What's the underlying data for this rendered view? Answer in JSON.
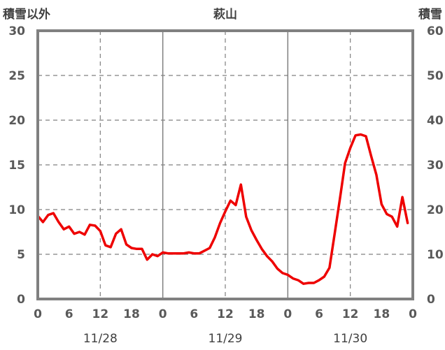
{
  "chart_data": {
    "type": "line",
    "title": "萩山",
    "y_left_label": "積雪以外",
    "y_right_label": "積雪",
    "y_left_range": [
      0,
      30
    ],
    "y_left_ticks": [
      "0",
      "5",
      "10",
      "15",
      "20",
      "25",
      "30"
    ],
    "y_right_range": [
      0,
      60
    ],
    "y_right_ticks": [
      "0",
      "10",
      "20",
      "30",
      "40",
      "50",
      "60"
    ],
    "x_range_hours": [
      0,
      72
    ],
    "x_tick_labels": [
      "0",
      "6",
      "12",
      "18",
      "0",
      "6",
      "12",
      "18",
      "0",
      "6",
      "12",
      "18",
      "0"
    ],
    "date_labels": [
      "11/28",
      "11/29",
      "11/30"
    ],
    "grid": true,
    "colors": {
      "temperature": "#ee0000",
      "snow_depth": "#7030a0",
      "frame": "#808080",
      "grid": "#808080"
    },
    "series": [
      {
        "axis": "left",
        "color": "#ee0000",
        "x": [
          0,
          1,
          2,
          3,
          4,
          5,
          6,
          7,
          8,
          9,
          10,
          11,
          12,
          13,
          14,
          15,
          16,
          17,
          18,
          19,
          20,
          21,
          22,
          23,
          24,
          25,
          26,
          27,
          28,
          29,
          30,
          31,
          32,
          33,
          34,
          35,
          36,
          37,
          38,
          39,
          40,
          41,
          42,
          43,
          44,
          45,
          46,
          47,
          48,
          49,
          50,
          51,
          52,
          53,
          54,
          55,
          56,
          57,
          58,
          59,
          60,
          61,
          62,
          63,
          64,
          65,
          66,
          67,
          68,
          69,
          70,
          71
        ],
        "values": [
          9.3,
          8.6,
          9.4,
          9.6,
          8.6,
          7.8,
          8.1,
          7.3,
          7.5,
          7.2,
          8.3,
          8.2,
          7.6,
          6.0,
          5.8,
          7.3,
          7.8,
          6.1,
          5.7,
          5.6,
          5.6,
          4.4,
          5.0,
          4.8,
          5.2,
          5.1,
          5.1,
          5.1,
          5.1,
          5.2,
          5.1,
          5.1,
          5.4,
          5.7,
          6.9,
          8.5,
          9.8,
          11.0,
          10.5,
          12.8,
          9.2,
          7.7,
          6.6,
          5.6,
          4.8,
          4.2,
          3.4,
          2.9,
          2.7,
          2.3,
          2.1,
          1.7,
          1.8,
          1.8,
          2.1,
          2.5,
          3.5,
          7.3,
          11.2,
          15.2,
          16.9,
          18.3,
          18.4,
          18.2,
          16.0,
          13.9,
          10.6,
          9.5,
          9.2,
          8.1,
          11.4,
          8.5
        ]
      },
      {
        "axis": "right",
        "color": "#7030a0",
        "x": [
          0,
          72
        ],
        "values": [
          0,
          0
        ]
      }
    ]
  }
}
